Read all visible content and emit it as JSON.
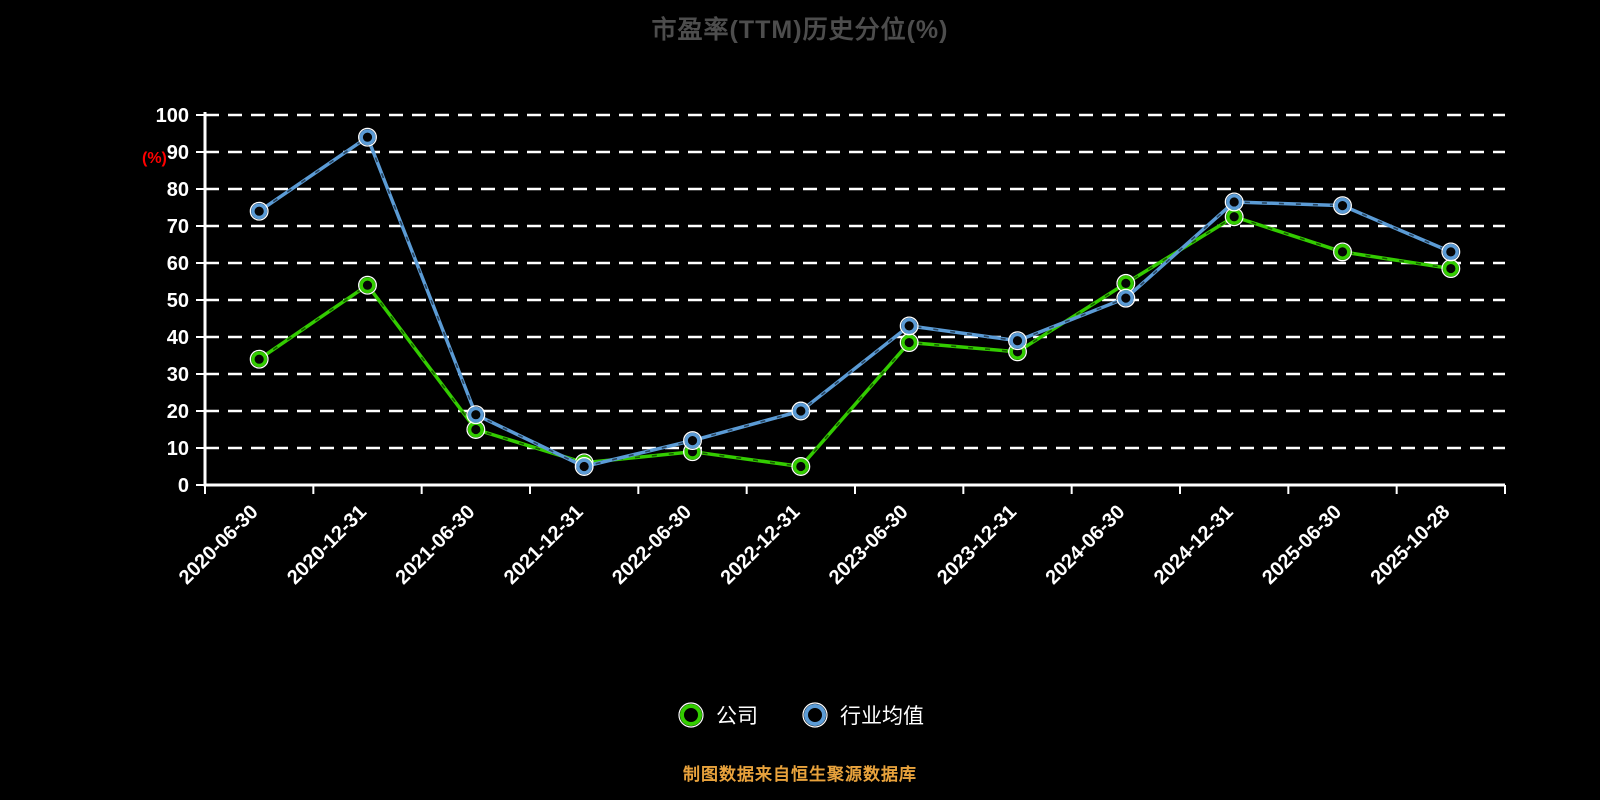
{
  "title": "市盈率(TTM)历史分位(%)",
  "footer_note": "制图数据来自恒生聚源数据库",
  "colors": {
    "background": "#000000",
    "title": "#4d4d4d",
    "axis": "#ffffff",
    "grid": "#ffffff",
    "tick_label": "#ffffff",
    "y_unit": "#ff0000",
    "footer": "#e8a23c",
    "legend_text": "#ffffff",
    "company": "#33cc00",
    "industry": "#5b9bd5"
  },
  "chart_data": {
    "type": "line",
    "title": "市盈率(TTM)历史分位(%)",
    "xlabel": "",
    "ylabel": "(%)",
    "ylim": [
      0,
      100
    ],
    "yticks": [
      0,
      10,
      20,
      30,
      40,
      50,
      60,
      70,
      80,
      90,
      100
    ],
    "ytick_interval": 10,
    "grid": true,
    "grid_style": "dashed",
    "legend_position": "bottom",
    "categories": [
      "2020-06-30",
      "2020-12-31",
      "2021-06-30",
      "2021-12-31",
      "2022-06-30",
      "2022-12-31",
      "2023-06-30",
      "2023-12-31",
      "2024-06-30",
      "2024-12-31",
      "2025-06-30",
      "2025-10-28"
    ],
    "series": [
      {
        "name": "公司",
        "color": "#33cc00",
        "values": [
          34,
          54,
          15,
          6,
          9,
          5,
          38.5,
          36,
          54.5,
          72.5,
          63,
          58.5
        ]
      },
      {
        "name": "行业均值",
        "color": "#5b9bd5",
        "values": [
          74,
          94,
          19,
          5,
          12,
          20,
          43,
          39,
          50.5,
          76.5,
          75.5,
          63
        ]
      }
    ]
  }
}
